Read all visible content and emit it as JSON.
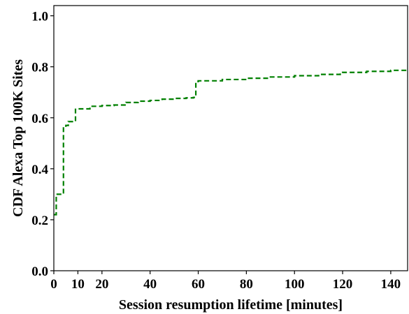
{
  "chart_data": {
    "type": "line",
    "title": "",
    "xlabel": "Session resumption lifetime [minutes]",
    "ylabel": "CDF Alexa Top 100K Sites",
    "xlim": [
      0,
      147
    ],
    "ylim": [
      0,
      1.04
    ],
    "xticks": [
      0,
      10,
      20,
      40,
      60,
      80,
      100,
      120,
      140
    ],
    "xtick_labels": [
      "0",
      "10",
      "20",
      "40",
      "60",
      "80",
      "100",
      "120",
      "140"
    ],
    "yticks": [
      0.0,
      0.2,
      0.4,
      0.6,
      0.8,
      1.0
    ],
    "ytick_labels": [
      "0.0",
      "0.2",
      "0.4",
      "0.6",
      "0.8",
      "1.0"
    ],
    "grid": false,
    "legend": "none",
    "series": [
      {
        "color": "#008000",
        "style": "dashed",
        "step": true,
        "x": [
          0,
          1,
          3,
          4,
          5,
          6,
          9,
          10,
          15,
          20,
          25,
          30,
          35,
          40,
          45,
          50,
          55,
          58,
          59,
          60,
          70,
          80,
          90,
          100,
          110,
          119,
          120,
          130,
          140,
          147
        ],
        "y": [
          0.22,
          0.3,
          0.3,
          0.56,
          0.57,
          0.585,
          0.633,
          0.635,
          0.645,
          0.648,
          0.65,
          0.66,
          0.665,
          0.668,
          0.673,
          0.676,
          0.678,
          0.68,
          0.742,
          0.745,
          0.75,
          0.755,
          0.76,
          0.765,
          0.77,
          0.775,
          0.778,
          0.782,
          0.786,
          0.788
        ]
      }
    ]
  }
}
